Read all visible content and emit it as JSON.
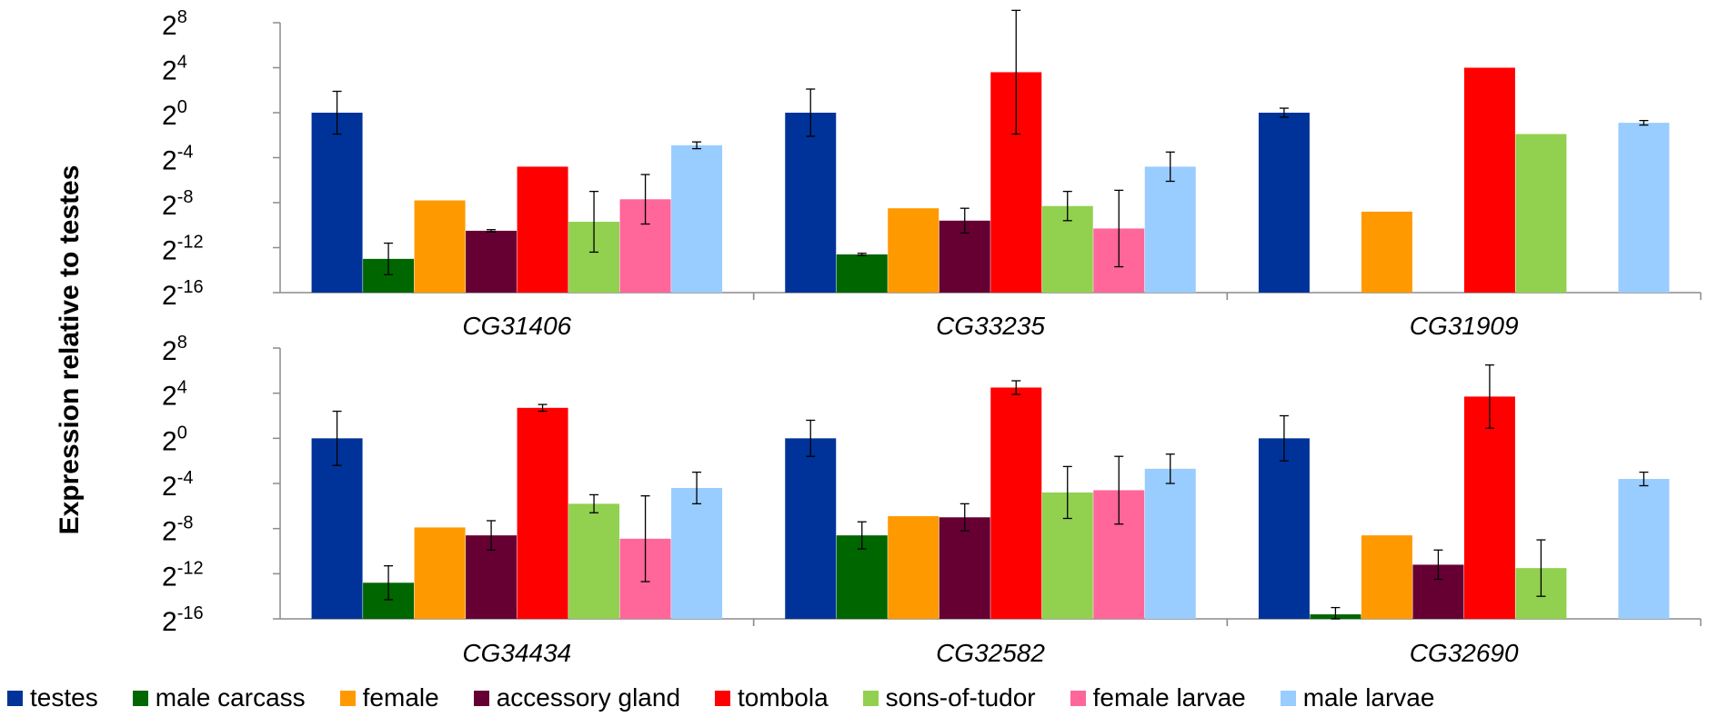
{
  "chart_data": {
    "type": "bar",
    "ylabel": "Expression relative to testes",
    "y_scale": "log2",
    "ylim": [
      -16,
      8
    ],
    "y_ticks": [
      {
        "base": "2",
        "exp": "8",
        "value": 8
      },
      {
        "base": "2",
        "exp": "4",
        "value": 4
      },
      {
        "base": "2",
        "exp": "0",
        "value": 0
      },
      {
        "base": "2",
        "exp": "-4",
        "value": -4
      },
      {
        "base": "2",
        "exp": "-8",
        "value": -8
      },
      {
        "base": "2",
        "exp": "-12",
        "value": -12
      },
      {
        "base": "2",
        "exp": "-16",
        "value": -16
      }
    ],
    "legend_position": "bottom",
    "series": [
      {
        "name": "testes",
        "color": "#003399"
      },
      {
        "name": "male carcass",
        "color": "#006600"
      },
      {
        "name": "female",
        "color": "#FF9900"
      },
      {
        "name": "accessory gland",
        "color": "#660033"
      },
      {
        "name": "tombola",
        "color": "#FF0000"
      },
      {
        "name": "sons-of-tudor",
        "color": "#92D050"
      },
      {
        "name": "female larvae",
        "color": "#FF6699"
      },
      {
        "name": "male larvae",
        "color": "#99CCFF"
      }
    ],
    "panels": [
      {
        "genes": [
          {
            "name": "CG31406",
            "values": [
              0,
              -13,
              -7.8,
              -10.5,
              -4.8,
              -9.7,
              -7.7,
              -2.9
            ],
            "errors": [
              1.9,
              1.4,
              null,
              0.1,
              null,
              2.7,
              2.2,
              0.3
            ]
          },
          {
            "name": "CG33235",
            "values": [
              0,
              -12.6,
              -8.5,
              -9.6,
              3.6,
              -8.3,
              -10.3,
              -4.8
            ],
            "errors": [
              2.1,
              0.1,
              null,
              1.1,
              5.5,
              1.3,
              3.4,
              1.3
            ]
          },
          {
            "name": "CG31909",
            "values": [
              0,
              null,
              -8.8,
              null,
              4.0,
              -1.9,
              null,
              -0.9
            ],
            "errors": [
              0.4,
              null,
              null,
              null,
              null,
              null,
              null,
              0.2
            ]
          }
        ]
      },
      {
        "genes": [
          {
            "name": "CG34434",
            "values": [
              0,
              -12.8,
              -7.9,
              -8.6,
              2.7,
              -5.8,
              -8.9,
              -4.4
            ],
            "errors": [
              2.4,
              1.5,
              null,
              1.3,
              0.3,
              0.8,
              3.8,
              1.4
            ]
          },
          {
            "name": "CG32582",
            "values": [
              0,
              -8.6,
              -6.9,
              -7.0,
              4.5,
              -4.8,
              -4.6,
              -2.7
            ],
            "errors": [
              1.6,
              1.2,
              null,
              1.2,
              0.6,
              2.3,
              3.0,
              1.3
            ]
          },
          {
            "name": "CG32690",
            "values": [
              0,
              -15.6,
              -8.6,
              -11.2,
              3.7,
              -11.5,
              null,
              -3.6
            ],
            "errors": [
              2.0,
              0.6,
              null,
              1.3,
              2.8,
              2.5,
              null,
              0.6
            ]
          }
        ]
      }
    ]
  }
}
